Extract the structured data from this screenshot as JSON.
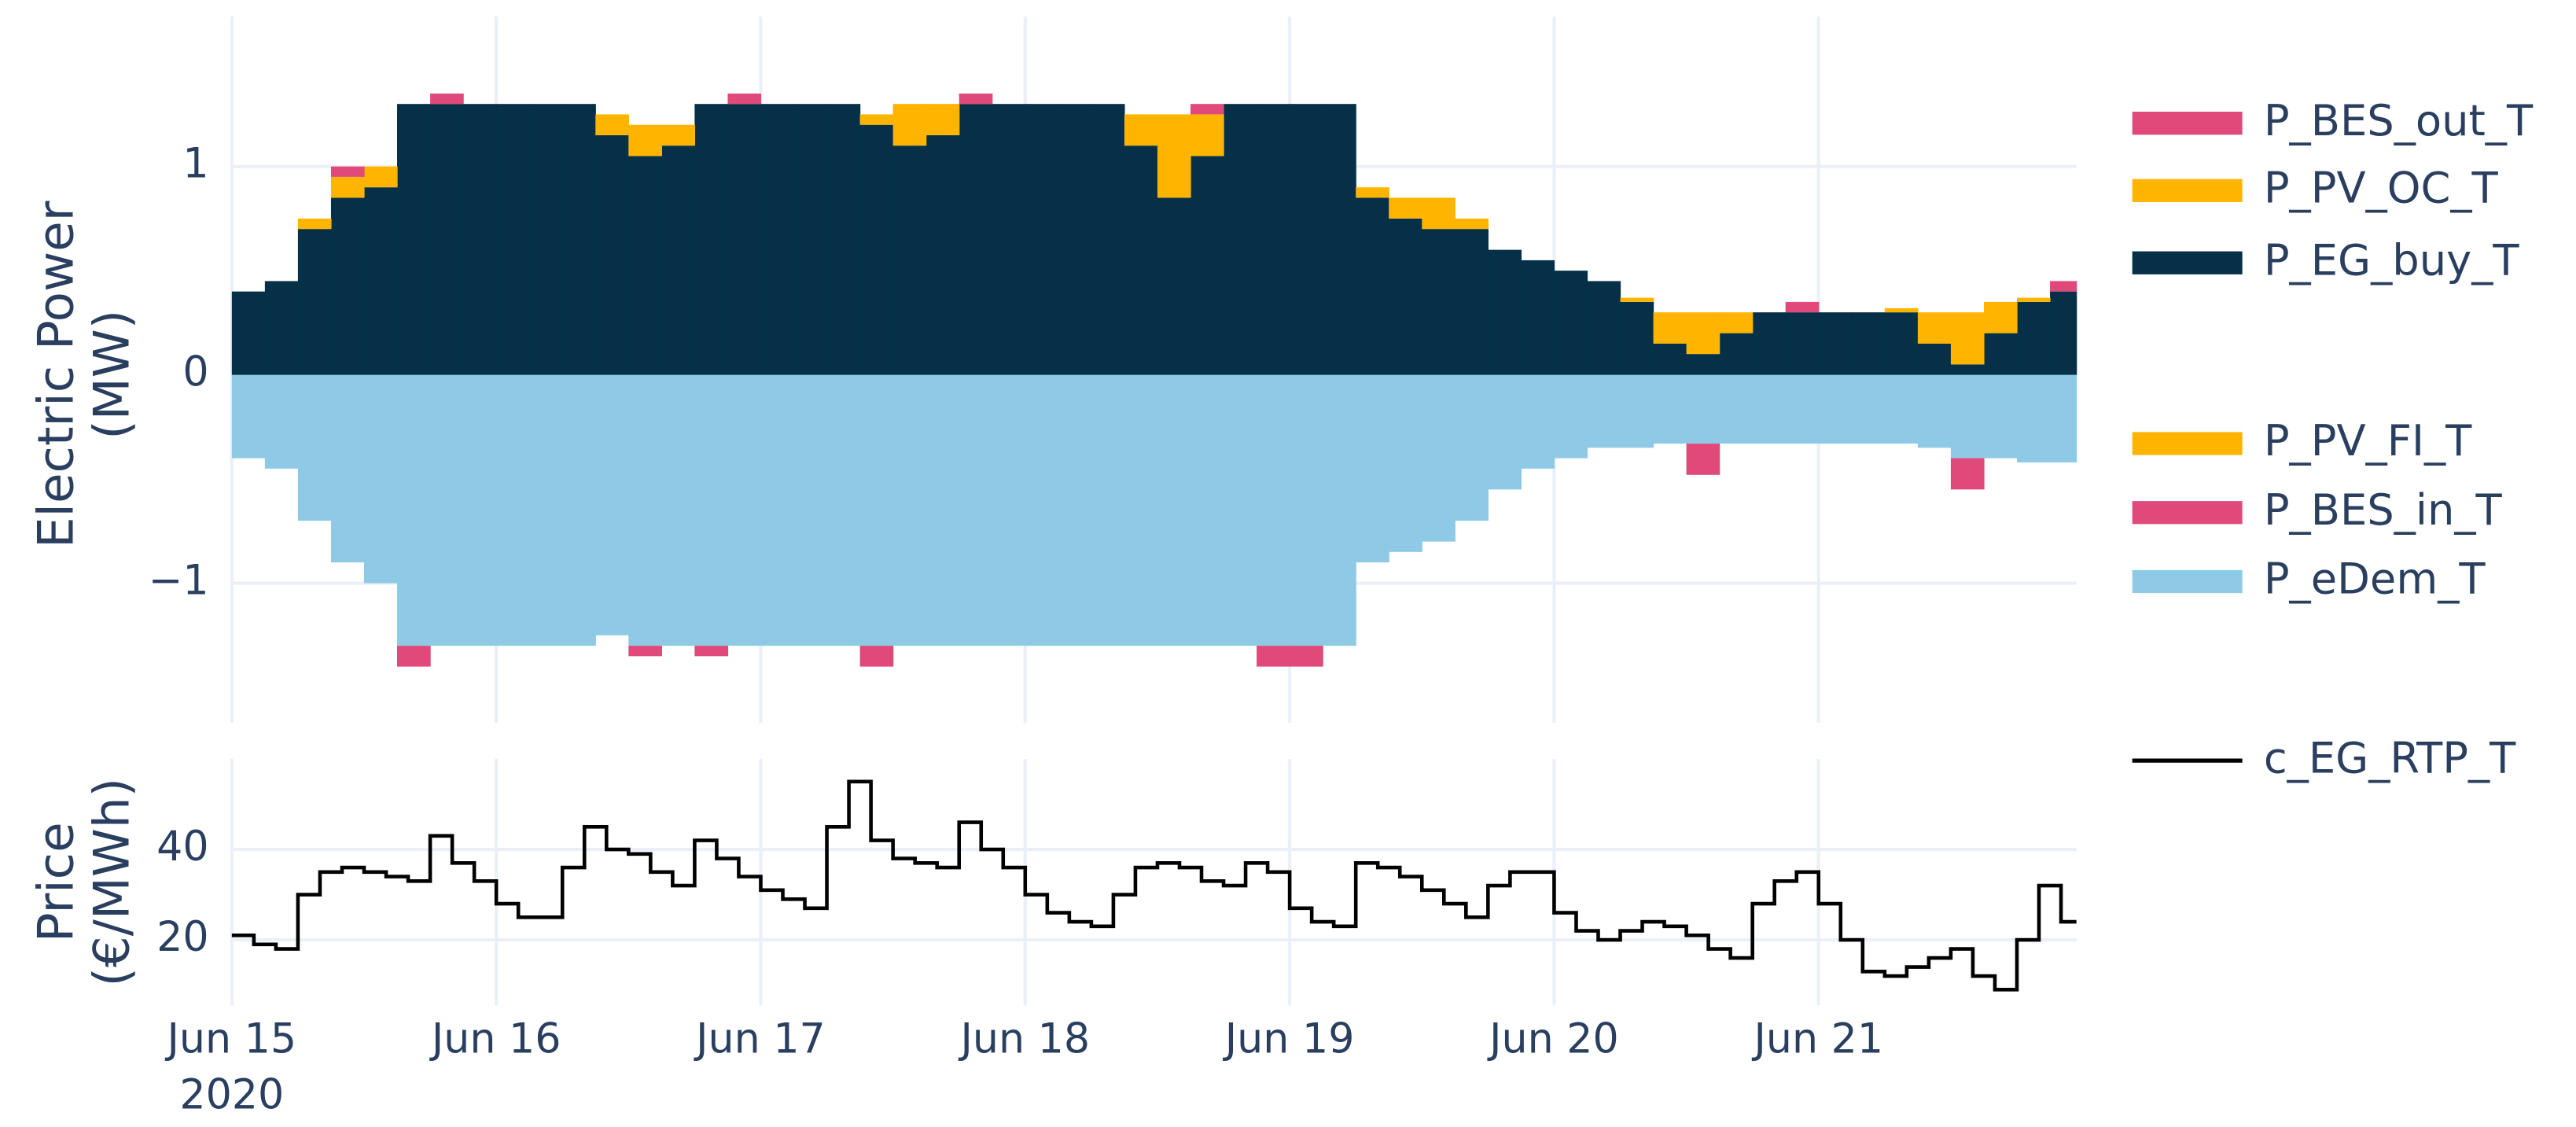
{
  "chart_data": [
    {
      "type": "stacked-bar",
      "y_title": [
        "Electric Power",
        "(MW)"
      ],
      "x": [
        0,
        3,
        6,
        9,
        12,
        15,
        18,
        21,
        24,
        27,
        30,
        33,
        36,
        39,
        42,
        45,
        48,
        51,
        54,
        57,
        60,
        63,
        66,
        69,
        72,
        75,
        78,
        81,
        84,
        87,
        90,
        93,
        96,
        99,
        102,
        105,
        108,
        111,
        114,
        117,
        120,
        123,
        126,
        129,
        132,
        135,
        138,
        141,
        144,
        147,
        150,
        153,
        156,
        159,
        162,
        165
      ],
      "xlim": [
        0,
        167.4
      ],
      "xticks": [
        {
          "value": 0,
          "label": "Jun 15"
        },
        {
          "value": 24,
          "label": "Jun 16"
        },
        {
          "value": 48,
          "label": "Jun 17"
        },
        {
          "value": 72,
          "label": "Jun 18"
        },
        {
          "value": 96,
          "label": "Jun 19"
        },
        {
          "value": 120,
          "label": "Jun 20"
        },
        {
          "value": 144,
          "label": "Jun 21"
        }
      ],
      "ylim": [
        -1.67,
        1.72
      ],
      "yticks": [
        {
          "value": -1,
          "label": "−1"
        },
        0,
        1
      ],
      "grid": true,
      "series": [
        {
          "name": "P_BES_out_T",
          "color": "#e0497a",
          "values": [
            0,
            0,
            0,
            0.05,
            0,
            0,
            0.05,
            0,
            0,
            0,
            0,
            0,
            0,
            0,
            0,
            0.05,
            0,
            0,
            0,
            0,
            0,
            0,
            0.05,
            0,
            0,
            0,
            0,
            0,
            0,
            0.05,
            0,
            0,
            0,
            0,
            0,
            0,
            0,
            0,
            0,
            0,
            0,
            0,
            0,
            0,
            0,
            0,
            0,
            0.05,
            0,
            0,
            0,
            0,
            0,
            0,
            0,
            0.05
          ]
        },
        {
          "name": "P_PV_OC_T",
          "color": "#ffb400",
          "values": [
            0,
            0,
            0.05,
            0.1,
            0.1,
            0,
            0,
            0,
            0,
            0,
            0,
            0.1,
            0.15,
            0.1,
            0,
            0,
            0,
            0,
            0,
            0.05,
            0.2,
            0.15,
            0,
            0,
            0,
            0,
            0,
            0.15,
            0.4,
            0.2,
            0,
            0,
            0,
            0,
            0.05,
            0.1,
            0.15,
            0.05,
            0,
            0,
            0,
            0,
            0.02,
            0.15,
            0.2,
            0.1,
            0,
            0,
            0,
            0,
            0.02,
            0.15,
            0.25,
            0.15,
            0.02,
            0
          ]
        },
        {
          "name": "P_EG_buy_T",
          "color": "#053047",
          "values": [
            0.4,
            0.45,
            0.7,
            0.85,
            0.9,
            1.3,
            1.3,
            1.3,
            1.3,
            1.3,
            1.3,
            1.15,
            1.05,
            1.1,
            1.3,
            1.3,
            1.3,
            1.3,
            1.3,
            1.2,
            1.1,
            1.15,
            1.3,
            1.3,
            1.3,
            1.3,
            1.3,
            1.1,
            0.85,
            1.05,
            1.3,
            1.3,
            1.3,
            1.3,
            0.85,
            0.75,
            0.7,
            0.7,
            0.6,
            0.55,
            0.5,
            0.45,
            0.35,
            0.15,
            0.1,
            0.2,
            0.3,
            0.3,
            0.3,
            0.3,
            0.3,
            0.15,
            0.05,
            0.2,
            0.35,
            0.4
          ]
        },
        {
          "name": "P_PV_FI_T",
          "color": "#ffb400",
          "values": [
            0,
            0,
            0,
            0,
            0,
            0,
            0,
            0,
            0,
            0,
            0,
            0,
            0,
            0,
            0,
            0,
            0,
            0,
            0,
            0,
            0,
            0,
            0,
            0,
            0,
            0,
            0,
            0,
            0,
            0,
            0,
            0,
            0,
            0,
            0,
            0,
            0,
            0,
            0,
            0,
            0,
            0,
            0,
            0,
            0,
            0,
            0,
            0,
            0,
            0,
            0,
            0,
            0,
            0,
            0,
            0
          ]
        },
        {
          "name": "P_BES_in_T",
          "color": "#e0497a",
          "values": [
            0,
            0,
            0,
            0,
            0,
            -0.1,
            0,
            0,
            0,
            0,
            0,
            0,
            -0.05,
            0,
            -0.05,
            0,
            0,
            0,
            0,
            -0.1,
            0,
            0,
            0,
            0,
            0,
            0,
            0,
            0,
            0,
            0,
            0,
            -0.1,
            -0.1,
            0,
            0,
            0,
            0,
            0,
            0,
            0,
            0,
            0,
            0,
            0,
            -0.15,
            0,
            0,
            0,
            0,
            0,
            0,
            0,
            -0.15,
            0,
            0,
            0
          ]
        },
        {
          "name": "P_eDem_T",
          "color": "#8ecae6",
          "values": [
            -0.4,
            -0.45,
            -0.7,
            -0.9,
            -1.0,
            -1.3,
            -1.3,
            -1.3,
            -1.3,
            -1.3,
            -1.3,
            -1.25,
            -1.3,
            -1.3,
            -1.3,
            -1.3,
            -1.3,
            -1.3,
            -1.3,
            -1.3,
            -1.3,
            -1.3,
            -1.3,
            -1.3,
            -1.3,
            -1.3,
            -1.3,
            -1.3,
            -1.3,
            -1.3,
            -1.3,
            -1.3,
            -1.3,
            -1.3,
            -0.9,
            -0.85,
            -0.8,
            -0.7,
            -0.55,
            -0.45,
            -0.4,
            -0.35,
            -0.35,
            -0.33,
            -0.33,
            -0.33,
            -0.33,
            -0.33,
            -0.33,
            -0.33,
            -0.33,
            -0.35,
            -0.4,
            -0.4,
            -0.42,
            -0.42
          ]
        }
      ]
    },
    {
      "type": "step-line",
      "y_title": [
        "Price",
        "(€/MWh)"
      ],
      "x_year": "2020",
      "x": [
        0,
        2,
        4,
        6,
        8,
        10,
        12,
        14,
        16,
        18,
        20,
        22,
        24,
        26,
        28,
        30,
        32,
        34,
        36,
        38,
        40,
        42,
        44,
        46,
        48,
        50,
        52,
        54,
        56,
        58,
        60,
        62,
        64,
        66,
        68,
        70,
        72,
        74,
        76,
        78,
        80,
        82,
        84,
        86,
        88,
        90,
        92,
        94,
        96,
        98,
        100,
        102,
        104,
        106,
        108,
        110,
        112,
        114,
        116,
        118,
        120,
        122,
        124,
        126,
        128,
        130,
        132,
        134,
        136,
        138,
        140,
        142,
        144,
        146,
        148,
        150,
        152,
        154,
        156,
        158,
        160,
        162,
        164,
        166
      ],
      "xlim": [
        0,
        167.4
      ],
      "xticks": [
        {
          "value": 0,
          "label": "Jun 15"
        },
        {
          "value": 24,
          "label": "Jun 16"
        },
        {
          "value": 48,
          "label": "Jun 17"
        },
        {
          "value": 72,
          "label": "Jun 18"
        },
        {
          "value": 96,
          "label": "Jun 19"
        },
        {
          "value": 120,
          "label": "Jun 20"
        },
        {
          "value": 144,
          "label": "Jun 21"
        }
      ],
      "ylim": [
        5.5,
        60
      ],
      "yticks": [
        20,
        40
      ],
      "grid": true,
      "series": [
        {
          "name": "c_EG_RTP_T",
          "color": "#000000",
          "values": [
            21,
            19,
            18,
            30,
            35,
            36,
            35,
            34,
            33,
            43,
            37,
            33,
            28,
            25,
            25,
            36,
            45,
            40,
            39,
            35,
            32,
            42,
            38,
            34,
            31,
            29,
            27,
            45,
            55,
            42,
            38,
            37,
            36,
            46,
            40,
            36,
            30,
            26,
            24,
            23,
            30,
            36,
            37,
            36,
            33,
            32,
            37,
            35,
            27,
            24,
            23,
            37,
            36,
            34,
            31,
            28,
            25,
            32,
            35,
            35,
            26,
            22,
            20,
            22,
            24,
            23,
            21,
            18,
            16,
            28,
            33,
            35,
            28,
            20,
            13,
            12,
            14,
            16,
            18,
            12,
            9,
            20,
            32,
            24
          ]
        }
      ]
    }
  ]
}
